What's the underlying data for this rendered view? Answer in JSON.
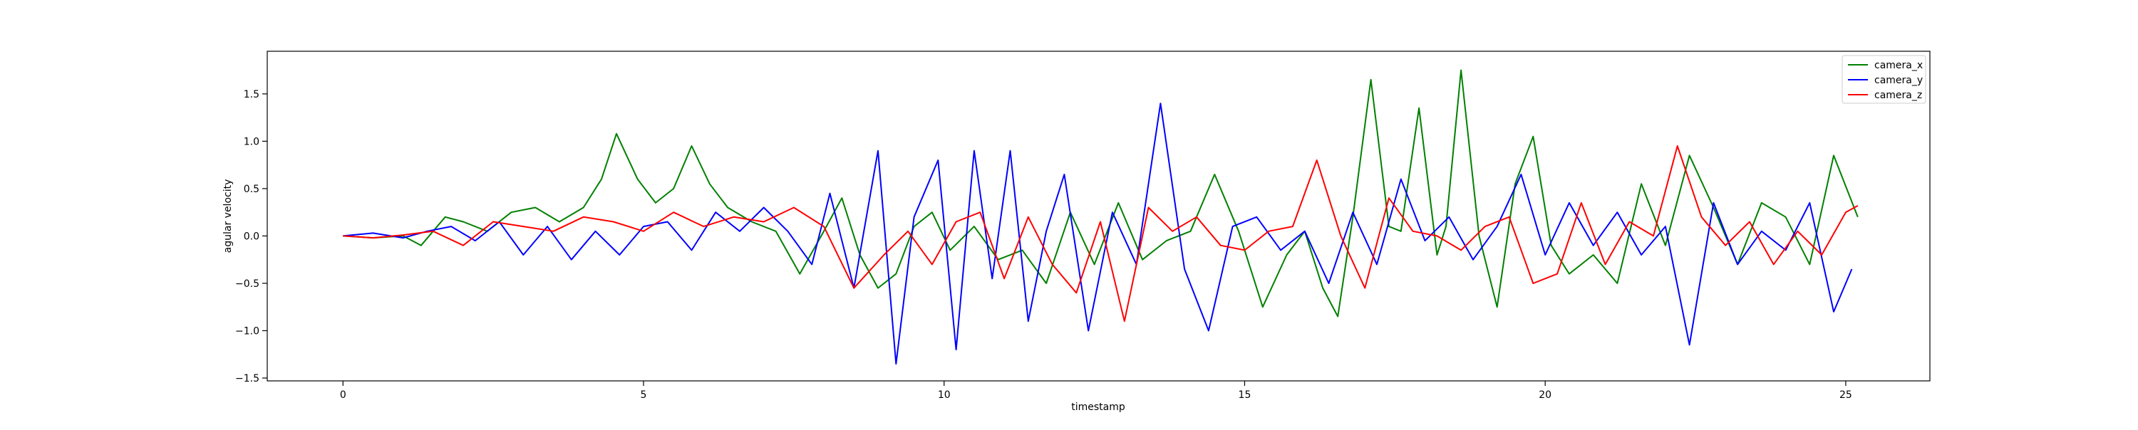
{
  "chart_data": {
    "type": "line",
    "title": "",
    "xlabel": "timestamp",
    "ylabel": "agular velocity",
    "xlim": [
      -1.26,
      26.4
    ],
    "ylim": [
      -1.53,
      1.95
    ],
    "xticks": [
      0,
      5,
      10,
      15,
      20,
      25
    ],
    "yticks": [
      -1.5,
      -1.0,
      -0.5,
      0.0,
      0.5,
      1.0,
      1.5
    ],
    "xtick_labels": [
      "0",
      "5",
      "10",
      "15",
      "20",
      "25"
    ],
    "ytick_labels": [
      "−1.5",
      "−1.0",
      "−0.5",
      "0.0",
      "0.5",
      "1.0",
      "1.5"
    ],
    "grid": false,
    "legend_position": "top-right",
    "series": [
      {
        "name": "camera_x",
        "color": "#008000",
        "x": [
          0,
          0.5,
          1.0,
          1.3,
          1.7,
          2.0,
          2.4,
          2.8,
          3.2,
          3.6,
          4.0,
          4.3,
          4.55,
          4.9,
          5.2,
          5.5,
          5.8,
          6.1,
          6.4,
          6.8,
          7.2,
          7.6,
          8.0,
          8.3,
          8.6,
          8.9,
          9.2,
          9.5,
          9.8,
          10.1,
          10.5,
          10.9,
          11.3,
          11.7,
          12.1,
          12.5,
          12.9,
          13.3,
          13.7,
          14.1,
          14.5,
          14.9,
          15.3,
          15.7,
          16.0,
          16.3,
          16.55,
          16.8,
          17.1,
          17.4,
          17.6,
          17.9,
          18.2,
          18.35,
          18.6,
          18.9,
          19.2,
          19.5,
          19.8,
          20.1,
          20.4,
          20.8,
          21.2,
          21.6,
          22.0,
          22.4,
          22.8,
          23.2,
          23.6,
          24.0,
          24.4,
          24.8,
          25.2
        ],
        "y": [
          0.0,
          -0.02,
          0.0,
          -0.1,
          0.2,
          0.15,
          0.05,
          0.25,
          0.3,
          0.15,
          0.3,
          0.6,
          1.08,
          0.6,
          0.35,
          0.5,
          0.95,
          0.55,
          0.3,
          0.15,
          0.05,
          -0.4,
          0.05,
          0.4,
          -0.2,
          -0.55,
          -0.4,
          0.1,
          0.25,
          -0.15,
          0.1,
          -0.25,
          -0.15,
          -0.5,
          0.25,
          -0.3,
          0.35,
          -0.25,
          -0.05,
          0.05,
          0.65,
          0.05,
          -0.75,
          -0.2,
          0.05,
          -0.55,
          -0.85,
          0.2,
          1.65,
          0.1,
          0.05,
          1.35,
          -0.2,
          0.1,
          1.75,
          0.0,
          -0.75,
          0.55,
          1.05,
          -0.1,
          -0.4,
          -0.2,
          -0.5,
          0.55,
          -0.1,
          0.85,
          0.3,
          -0.3,
          0.35,
          0.2,
          -0.3,
          0.85,
          0.2
        ]
      },
      {
        "name": "camera_y",
        "color": "#0000ff",
        "x": [
          0,
          0.5,
          1.0,
          1.4,
          1.8,
          2.2,
          2.6,
          3.0,
          3.4,
          3.8,
          4.2,
          4.6,
          5.0,
          5.4,
          5.8,
          6.2,
          6.6,
          7.0,
          7.4,
          7.8,
          8.1,
          8.5,
          8.9,
          9.2,
          9.5,
          9.9,
          10.2,
          10.5,
          10.8,
          11.1,
          11.4,
          11.7,
          12.0,
          12.4,
          12.8,
          13.2,
          13.6,
          14.0,
          14.4,
          14.8,
          15.2,
          15.6,
          16.0,
          16.4,
          16.8,
          17.2,
          17.6,
          18.0,
          18.4,
          18.8,
          19.2,
          19.6,
          20.0,
          20.4,
          20.8,
          21.2,
          21.6,
          22.0,
          22.4,
          22.8,
          23.2,
          23.6,
          24.0,
          24.4,
          24.8,
          25.1
        ],
        "y": [
          0.0,
          0.03,
          -0.02,
          0.05,
          0.1,
          -0.05,
          0.15,
          -0.2,
          0.1,
          -0.25,
          0.05,
          -0.2,
          0.1,
          0.15,
          -0.15,
          0.25,
          0.05,
          0.3,
          0.05,
          -0.3,
          0.45,
          -0.55,
          0.9,
          -1.35,
          0.2,
          0.8,
          -1.2,
          0.9,
          -0.45,
          0.9,
          -0.9,
          0.05,
          0.65,
          -1.0,
          0.25,
          -0.3,
          1.4,
          -0.35,
          -1.0,
          0.1,
          0.2,
          -0.15,
          0.05,
          -0.5,
          0.25,
          -0.3,
          0.6,
          -0.05,
          0.2,
          -0.25,
          0.1,
          0.65,
          -0.2,
          0.35,
          -0.1,
          0.25,
          -0.2,
          0.1,
          -1.15,
          0.35,
          -0.3,
          0.05,
          -0.15,
          0.35,
          -0.8,
          -0.35
        ]
      },
      {
        "name": "camera_z",
        "color": "#ff0000",
        "x": [
          0,
          0.5,
          1.0,
          1.5,
          2.0,
          2.5,
          3.0,
          3.5,
          4.0,
          4.5,
          5.0,
          5.5,
          6.0,
          6.5,
          7.0,
          7.5,
          8.0,
          8.5,
          9.0,
          9.4,
          9.8,
          10.2,
          10.6,
          11.0,
          11.4,
          11.8,
          12.2,
          12.6,
          13.0,
          13.4,
          13.8,
          14.2,
          14.6,
          15.0,
          15.4,
          15.8,
          16.2,
          16.6,
          17.0,
          17.4,
          17.8,
          18.2,
          18.6,
          19.0,
          19.4,
          19.8,
          20.2,
          20.6,
          21.0,
          21.4,
          21.8,
          22.2,
          22.6,
          23.0,
          23.4,
          23.8,
          24.2,
          24.6,
          25.0,
          25.2
        ],
        "y": [
          0.0,
          -0.02,
          0.01,
          0.05,
          -0.1,
          0.15,
          0.1,
          0.05,
          0.2,
          0.15,
          0.05,
          0.25,
          0.1,
          0.2,
          0.15,
          0.3,
          0.1,
          -0.55,
          -0.2,
          0.05,
          -0.3,
          0.15,
          0.25,
          -0.45,
          0.2,
          -0.3,
          -0.6,
          0.15,
          -0.9,
          0.3,
          0.05,
          0.2,
          -0.1,
          -0.15,
          0.05,
          0.1,
          0.8,
          0.0,
          -0.55,
          0.4,
          0.05,
          0.0,
          -0.15,
          0.1,
          0.2,
          -0.5,
          -0.4,
          0.35,
          -0.3,
          0.15,
          0.0,
          0.95,
          0.2,
          -0.1,
          0.15,
          -0.3,
          0.05,
          -0.2,
          0.25,
          0.32
        ]
      }
    ]
  }
}
